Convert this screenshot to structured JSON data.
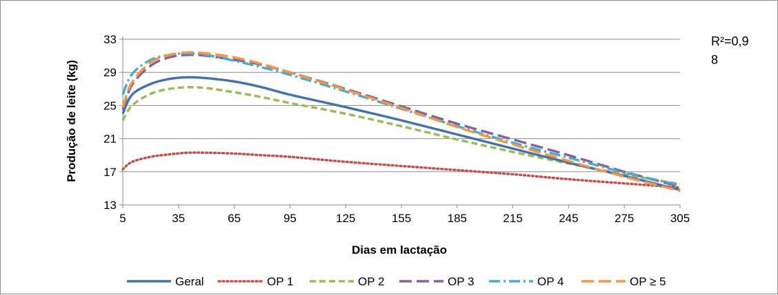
{
  "chart_data": {
    "type": "line",
    "title": "",
    "xlabel": "Dias em lactação",
    "ylabel": "Produção de leite (kg)",
    "xlim": [
      5,
      305
    ],
    "ylim": [
      13,
      35
    ],
    "xticks": [
      5,
      35,
      65,
      95,
      125,
      155,
      185,
      215,
      245,
      275,
      305
    ],
    "yticks": [
      13,
      17,
      21,
      25,
      29,
      33
    ],
    "xtick_labels": [
      "5",
      "35",
      "65",
      "95",
      "125",
      "155",
      "185",
      "215",
      "245",
      "275",
      "305"
    ],
    "ytick_labels": [
      "13",
      "17",
      "21",
      "25",
      "29",
      "33"
    ],
    "grid": "horizontal",
    "legend_position": "bottom",
    "annotation": "R²=0,98",
    "annotation_lines": [
      "R²=0,9",
      "8"
    ],
    "series": [
      {
        "name": "Geral",
        "color": "#4572A7",
        "style": "solid",
        "x": [
          5,
          10,
          20,
          30,
          40,
          50,
          65,
          80,
          95,
          125,
          155,
          185,
          215,
          245,
          275,
          305
        ],
        "y": [
          24.0,
          26.3,
          27.6,
          28.2,
          28.4,
          28.3,
          27.9,
          27.2,
          26.3,
          24.8,
          23.2,
          21.5,
          19.8,
          18.1,
          16.5,
          14.8
        ]
      },
      {
        "name": "OP 1",
        "color": "#C0504D",
        "style": "dotted",
        "x": [
          5,
          10,
          20,
          30,
          40,
          50,
          65,
          80,
          95,
          125,
          155,
          185,
          215,
          245,
          275,
          305
        ],
        "y": [
          17.3,
          18.2,
          18.8,
          19.1,
          19.3,
          19.3,
          19.2,
          19.0,
          18.8,
          18.2,
          17.7,
          17.2,
          16.7,
          16.1,
          15.6,
          15.1
        ]
      },
      {
        "name": "OP 2",
        "color": "#9BBB59",
        "style": "dashed",
        "x": [
          5,
          10,
          20,
          30,
          40,
          50,
          65,
          80,
          95,
          125,
          155,
          185,
          215,
          245,
          275,
          305
        ],
        "y": [
          23.2,
          25.0,
          26.4,
          27.0,
          27.2,
          27.1,
          26.6,
          26.0,
          25.3,
          24.0,
          22.5,
          20.9,
          19.4,
          18.0,
          16.7,
          15.5
        ]
      },
      {
        "name": "OP 3",
        "color": "#8064A2",
        "style": "longdash",
        "x": [
          5,
          10,
          20,
          30,
          40,
          50,
          65,
          80,
          95,
          125,
          155,
          185,
          215,
          245,
          275,
          305
        ],
        "y": [
          24.5,
          27.5,
          29.8,
          30.8,
          31.1,
          31.0,
          30.5,
          29.9,
          29.0,
          27.0,
          24.9,
          22.8,
          20.9,
          19.0,
          17.0,
          15.2
        ]
      },
      {
        "name": "OP 4",
        "color": "#4BACC6",
        "style": "dashdot",
        "x": [
          5,
          10,
          20,
          30,
          40,
          50,
          65,
          80,
          95,
          125,
          155,
          185,
          215,
          245,
          275,
          305
        ],
        "y": [
          26.3,
          28.8,
          30.5,
          31.1,
          31.3,
          31.1,
          30.4,
          29.6,
          28.7,
          26.7,
          24.6,
          22.5,
          20.5,
          18.7,
          16.9,
          15.4
        ]
      },
      {
        "name": "OP ≥ 5",
        "color": "#F79646",
        "style": "longdash",
        "x": [
          5,
          10,
          20,
          30,
          40,
          50,
          65,
          80,
          95,
          125,
          155,
          185,
          215,
          245,
          275,
          305
        ],
        "y": [
          24.8,
          27.8,
          30.2,
          31.1,
          31.4,
          31.3,
          30.8,
          30.0,
          29.0,
          26.9,
          24.7,
          22.4,
          20.3,
          18.3,
          16.4,
          14.7
        ]
      }
    ]
  }
}
